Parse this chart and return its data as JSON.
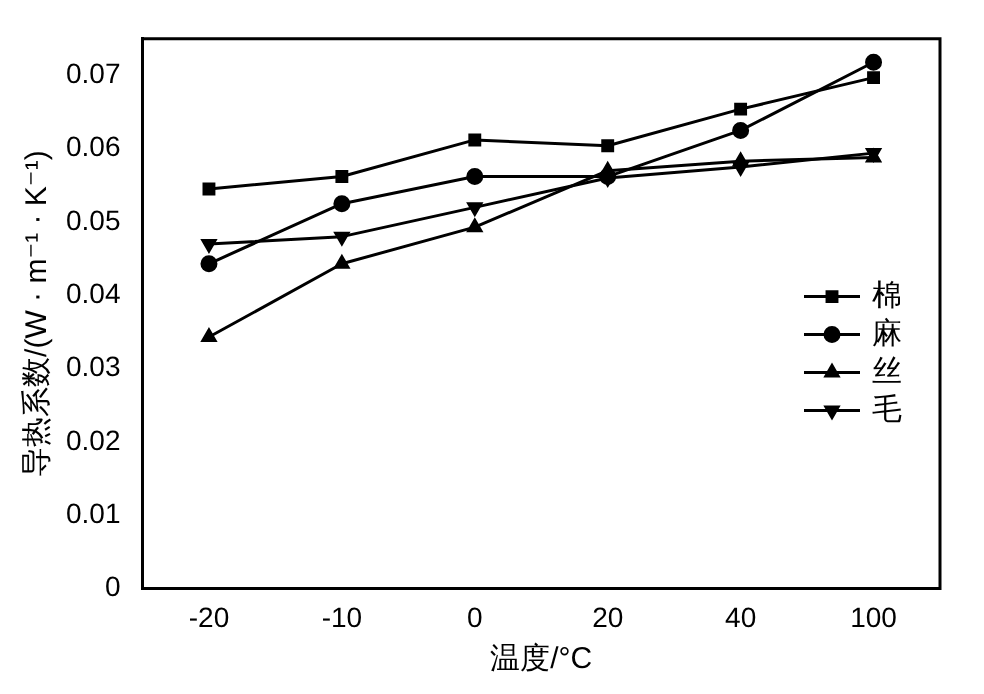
{
  "chart_data": {
    "type": "line",
    "xlabel": "温度/°C",
    "ylabel": "导热系数/(W · m⁻¹ · K⁻¹)",
    "categories": [
      "-20",
      "-10",
      "0",
      "20",
      "40",
      "100"
    ],
    "series": [
      {
        "name": "棉",
        "color": "#000000",
        "marker": "square",
        "values": [
          0.0545,
          0.0562,
          0.0612,
          0.0604,
          0.0654,
          0.0697
        ]
      },
      {
        "name": "麻",
        "color": "#000000",
        "marker": "circle",
        "values": [
          0.0443,
          0.0525,
          0.0562,
          0.0562,
          0.0625,
          0.0718
        ]
      },
      {
        "name": "丝",
        "color": "#000000",
        "marker": "triangle",
        "values": [
          0.0343,
          0.0443,
          0.0493,
          0.057,
          0.0583,
          0.0588
        ]
      },
      {
        "name": "毛",
        "color": "#000000",
        "marker": "triangle-down",
        "values": [
          0.047,
          0.048,
          0.052,
          0.056,
          0.0575,
          0.0594
        ]
      }
    ],
    "ylim": [
      0,
      0.075
    ],
    "yticks": [
      0,
      0.01,
      0.02,
      0.03,
      0.04,
      0.05,
      0.06,
      0.07
    ],
    "grid": false,
    "legend": "right",
    "line_style": "solid"
  }
}
